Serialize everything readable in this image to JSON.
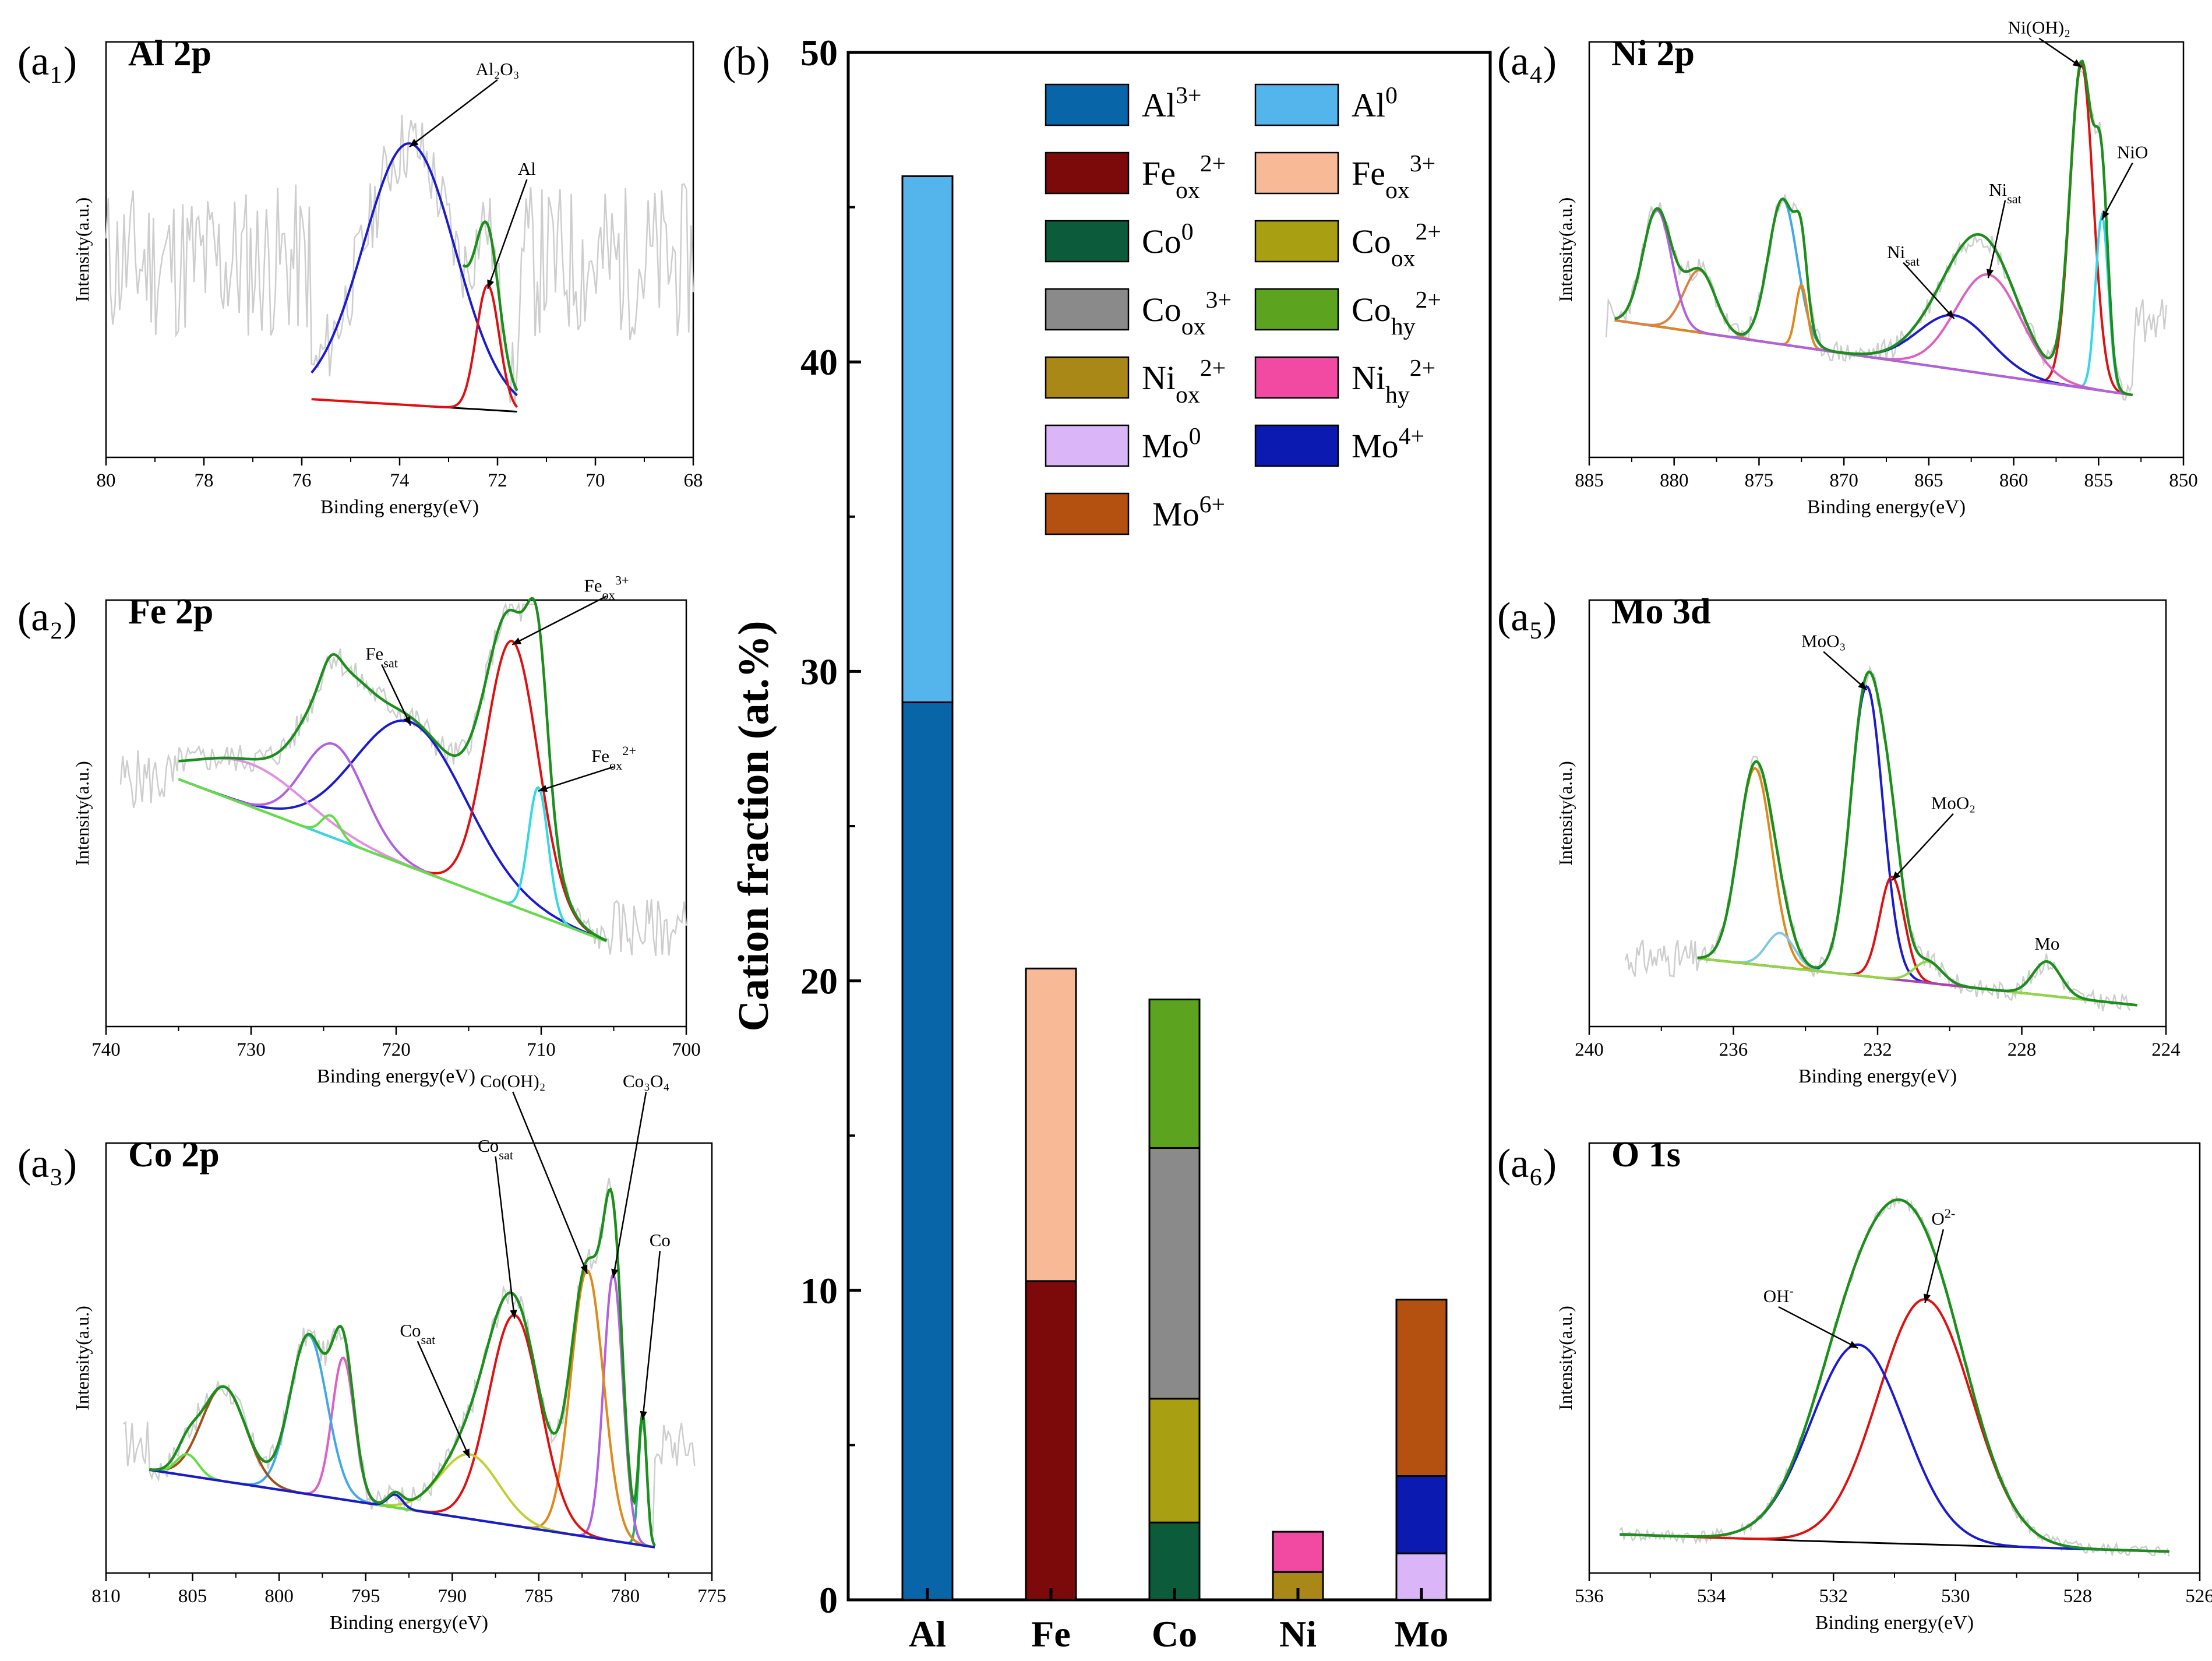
{
  "figure_labels": {
    "a1": "(a₁)",
    "a2": "(a₂)",
    "a3": "(a₃)",
    "a4": "(a₄)",
    "a5": "(a₅)",
    "a6": "(a₆)",
    "b": "(b)"
  },
  "colors": {
    "raw": "#cdcdcd",
    "envelope": "#1a8f1a",
    "background": "#000000",
    "red": "#e01010",
    "blue": "#1a1ad0",
    "cyan": "#30d8e8",
    "orange": "#e08818",
    "violet": "#b060e0",
    "lightgreen": "#60e040",
    "brown": "#a05018",
    "pink": "#e060c0",
    "olive": "#b0b040",
    "lightblue": "#60b8e8"
  },
  "chart_data": [
    {
      "id": "b",
      "type": "bar",
      "stacked": true,
      "title": "",
      "xlabel": "",
      "ylabel": "Cation fraction (at.%)",
      "ylim": [
        0,
        50
      ],
      "yticks": [
        "0",
        "10",
        "20",
        "30",
        "40",
        "50"
      ],
      "categories": [
        "Al",
        "Fe",
        "Co",
        "Ni",
        "Mo"
      ],
      "series": [
        {
          "name": "Al3+",
          "base": "Al",
          "sup": "3+",
          "sub": "",
          "color": "#0865a8",
          "values": [
            29.0,
            0,
            0,
            0,
            0
          ]
        },
        {
          "name": "Al0",
          "base": "Al",
          "sup": "0",
          "sub": "",
          "color": "#53b5ec",
          "values": [
            17.0,
            0,
            0,
            0,
            0
          ]
        },
        {
          "name": "Feox2+",
          "base": "Fe",
          "sup": "2+",
          "sub": "ox",
          "color": "#7d0a0a",
          "values": [
            0,
            10.3,
            0,
            0,
            0
          ]
        },
        {
          "name": "Feox3+",
          "base": "Fe",
          "sup": "3+",
          "sub": "ox",
          "color": "#f7b996",
          "values": [
            0,
            10.1,
            0,
            0,
            0
          ]
        },
        {
          "name": "Co0",
          "base": "Co",
          "sup": "0",
          "sub": "",
          "color": "#0c5c3c",
          "values": [
            0,
            0,
            2.5,
            0,
            0
          ]
        },
        {
          "name": "Coox2+",
          "base": "Co",
          "sup": "2+",
          "sub": "ox",
          "color": "#a8a012",
          "values": [
            0,
            0,
            4.0,
            0,
            0
          ]
        },
        {
          "name": "Coox3+",
          "base": "Co",
          "sup": "3+",
          "sub": "ox",
          "color": "#8a8a8a",
          "values": [
            0,
            0,
            8.1,
            0,
            0
          ]
        },
        {
          "name": "Cohy2+",
          "base": "Co",
          "sup": "2+",
          "sub": "hy",
          "color": "#5ca41f",
          "values": [
            0,
            0,
            4.8,
            0,
            0
          ]
        },
        {
          "name": "Niox2+",
          "base": "Ni",
          "sup": "2+",
          "sub": "ox",
          "color": "#aa8818",
          "values": [
            0,
            0,
            0,
            0.9,
            0
          ]
        },
        {
          "name": "Nihy2+",
          "base": "Ni",
          "sup": "2+",
          "sub": "hy",
          "color": "#f24aa2",
          "values": [
            0,
            0,
            0,
            1.3,
            0
          ]
        },
        {
          "name": "Mo0",
          "base": "Mo",
          "sup": "0",
          "sub": "",
          "color": "#dab6f8",
          "values": [
            0,
            0,
            0,
            0,
            1.5
          ]
        },
        {
          "name": "Mo4+",
          "base": "Mo",
          "sup": "4+",
          "sub": "",
          "color": "#0b1ab0",
          "values": [
            0,
            0,
            0,
            0,
            2.5
          ]
        },
        {
          "name": "Mo6+",
          "base": "Mo",
          "sup": "6+",
          "sub": "",
          "color": "#b45010",
          "values": [
            0,
            0,
            0,
            0,
            5.7
          ]
        }
      ]
    },
    {
      "id": "a1",
      "type": "line",
      "title": "Al 2p",
      "xlabel": "Binding energy(eV)",
      "ylabel": "Intensity(a.u.)",
      "xlim": [
        80,
        68
      ],
      "ylim": [
        0,
        1
      ],
      "xticks": [
        80,
        78,
        76,
        74,
        72,
        70,
        68
      ],
      "raw": {
        "x_range": [
          80,
          68
        ],
        "base": 0.47,
        "noise": 0.19,
        "seed": 11
      },
      "background": {
        "points": [
          [
            75.8,
            0.14
          ],
          [
            71.6,
            0.11
          ]
        ]
      },
      "peaks": [
        {
          "label": "Al2O3",
          "center": 73.8,
          "fwhm": 2.2,
          "height": 0.63,
          "color": "red-unused-blue"
        },
        {
          "label": "Al",
          "center": 72.2,
          "fwhm": 0.55,
          "height": 0.3
        }
      ],
      "peak_colors": [
        "#1a1ad0",
        "#e01010"
      ],
      "envelope_range": [
        72.7,
        71.6
      ],
      "annotations": [
        {
          "text": "Al₂O₃",
          "tx": 72.0,
          "ty": 0.92,
          "peak": 0
        },
        {
          "text": "Al",
          "tx": 71.4,
          "ty": 0.68,
          "peak": 1
        }
      ]
    },
    {
      "id": "a2",
      "type": "line",
      "title": "Fe 2p",
      "xlabel": "Binding energy(eV)",
      "ylabel": "Intensity(a.u.)",
      "xlim": [
        740,
        700
      ],
      "ylim": [
        0,
        1
      ],
      "xticks": [
        740,
        730,
        720,
        710,
        700
      ],
      "raw": {
        "x_range": [
          739,
          700
        ],
        "base": 0.58,
        "noise": 0.07,
        "seed": 5,
        "tail": 0.2
      },
      "background": {
        "points": [
          [
            735,
            0.58
          ],
          [
            705.5,
            0.2
          ]
        ]
      },
      "peaks": [
        {
          "label": "Fe_sat",
          "center": 719.0,
          "fwhm": 9.0,
          "height": 0.34
        },
        {
          "label": "Feox3+",
          "center": 712.0,
          "fwhm": 4.2,
          "height": 0.62
        },
        {
          "label": "Feox2+",
          "center": 710.2,
          "fwhm": 1.6,
          "height": 0.3
        },
        {
          "label": "sat2",
          "center": 724.3,
          "fwhm": 5.0,
          "height": 0.22
        },
        {
          "label": "sat3",
          "center": 730.0,
          "fwhm": 9.0,
          "height": 0.1
        },
        {
          "label": "small",
          "center": 724.5,
          "fwhm": 1.5,
          "height": 0.05
        }
      ],
      "peak_colors": [
        "#1a1ad0",
        "#e01010",
        "#30d8e8",
        "#b060e0",
        "#e090e0",
        "#60e040"
      ],
      "annotations": [
        {
          "text": "Fe_sat",
          "tx": 721.0,
          "ty": 0.86,
          "peak": 0
        },
        {
          "text": "Fe_ox^3+",
          "tx": 705.5,
          "ty": 1.02,
          "peak": 1
        },
        {
          "text": "Fe_ox^2+",
          "tx": 705.0,
          "ty": 0.62,
          "peak": 2
        }
      ]
    },
    {
      "id": "a3",
      "type": "line",
      "title": "Co 2p",
      "xlabel": "Binding energy(eV)",
      "ylabel": "Intensity(a.u.)",
      "xlim": [
        810,
        775
      ],
      "ylim": [
        0,
        1
      ],
      "xticks": [
        810,
        805,
        800,
        795,
        790,
        785,
        780,
        775
      ],
      "raw": {
        "x_range": [
          809,
          776
        ],
        "base": 0.3,
        "noise": 0.06,
        "seed": 17
      },
      "background": {
        "points": [
          [
            807.5,
            0.24
          ],
          [
            778.3,
            0.06
          ]
        ]
      },
      "peaks": [
        {
          "label": "Co",
          "center": 779.0,
          "fwhm": 0.55,
          "height": 0.3
        },
        {
          "label": "Co3O4",
          "center": 780.7,
          "fwhm": 1.3,
          "height": 0.62
        },
        {
          "label": "Co(OH)2",
          "center": 782.2,
          "fwhm": 2.2,
          "height": 0.62
        },
        {
          "label": "Co_sat",
          "center": 786.4,
          "fwhm": 3.5,
          "height": 0.49
        },
        {
          "label": "Co_sat2",
          "center": 789.0,
          "fwhm": 4.0,
          "height": 0.15
        },
        {
          "label": "p796",
          "center": 796.3,
          "fwhm": 1.5,
          "height": 0.33
        },
        {
          "label": "p798",
          "center": 798.3,
          "fwhm": 2.5,
          "height": 0.37
        },
        {
          "label": "p803",
          "center": 803.2,
          "fwhm": 3.0,
          "height": 0.22
        },
        {
          "label": "p805",
          "center": 805.3,
          "fwhm": 1.5,
          "height": 0.05
        },
        {
          "label": "p793",
          "center": 793.3,
          "fwhm": 1.0,
          "height": 0.03
        }
      ],
      "peak_colors": [
        "#20b070",
        "#b060e0",
        "#e08818",
        "#e01010",
        "#c0d030",
        "#e060c0",
        "#40a8e8",
        "#a05018",
        "#60e040",
        "#1a1ad0"
      ],
      "annotations": [
        {
          "text": "Co",
          "tx": 778.0,
          "ty": 0.76,
          "peak": 0
        },
        {
          "text": "Co₃O₄",
          "tx": 778.8,
          "ty": 1.13,
          "peak": 1
        },
        {
          "text": "Co(OH)₂",
          "tx": 786.5,
          "ty": 1.13,
          "peak": 2
        },
        {
          "text": "Co_sat",
          "tx": 787.5,
          "ty": 0.98,
          "peak": 3
        },
        {
          "text": "Co_sat",
          "tx": 792.0,
          "ty": 0.55,
          "peak": 4
        }
      ]
    },
    {
      "id": "a4",
      "type": "line",
      "title": "Ni 2p",
      "xlabel": "Binding energy(eV)",
      "ylabel": "Intensity(a.u.)",
      "xlim": [
        885,
        850
      ],
      "ylim": [
        0,
        1
      ],
      "xticks": [
        885,
        880,
        875,
        870,
        865,
        860,
        855,
        850
      ],
      "raw": {
        "x_range": [
          884,
          851
        ],
        "base": 0.33,
        "noise": 0.055,
        "seed": 23
      },
      "background": {
        "points": [
          [
            883.5,
            0.33
          ],
          [
            853.0,
            0.15
          ]
        ]
      },
      "peaks": [
        {
          "label": "Ni(OH)2",
          "center": 856.0,
          "fwhm": 1.6,
          "height": 0.78
        },
        {
          "label": "NiO",
          "center": 854.8,
          "fwhm": 0.9,
          "height": 0.42
        },
        {
          "label": "Ni_sat1",
          "center": 861.5,
          "fwhm": 4.5,
          "height": 0.24
        },
        {
          "label": "Ni_sat2",
          "center": 863.5,
          "fwhm": 5.0,
          "height": 0.13
        },
        {
          "label": "p873",
          "center": 873.6,
          "fwhm": 2.0,
          "height": 0.35
        },
        {
          "label": "p872",
          "center": 872.5,
          "fwhm": 0.8,
          "height": 0.15
        },
        {
          "label": "p878",
          "center": 878.5,
          "fwhm": 2.2,
          "height": 0.15
        },
        {
          "label": "p881",
          "center": 881.0,
          "fwhm": 2.0,
          "height": 0.28
        }
      ],
      "peak_colors": [
        "#e01010",
        "#30d8e8",
        "#e060c0",
        "#1a1ad0",
        "#40a8e8",
        "#e08818",
        "#e08040",
        "#b060e0"
      ],
      "annotations": [
        {
          "text": "Ni(OH)₂",
          "tx": 858.5,
          "ty": 1.02,
          "peak": 0
        },
        {
          "text": "NiO",
          "tx": 853.0,
          "ty": 0.72,
          "peak": 1
        },
        {
          "text": "Ni_sat",
          "tx": 860.5,
          "ty": 0.63,
          "peak": 2
        },
        {
          "text": "Ni_sat",
          "tx": 866.5,
          "ty": 0.48,
          "peak": 3
        }
      ]
    },
    {
      "id": "a5",
      "type": "line",
      "title": "Mo 3d",
      "xlabel": "Binding energy(eV)",
      "ylabel": "Intensity(a.u.)",
      "xlim": [
        240,
        224
      ],
      "ylim": [
        0,
        1
      ],
      "xticks": [
        240,
        236,
        232,
        228,
        224
      ],
      "raw": {
        "x_range": [
          239,
          225
        ],
        "base": 0.16,
        "noise": 0.045,
        "seed": 31
      },
      "background": {
        "points": [
          [
            237.0,
            0.16
          ],
          [
            224.8,
            0.05
          ]
        ]
      },
      "peaks": [
        {
          "label": "MoO3",
          "center": 232.3,
          "fwhm": 1.05,
          "height": 0.68
        },
        {
          "label": "p235",
          "center": 235.4,
          "fwhm": 1.1,
          "height": 0.46
        },
        {
          "label": "MoO2",
          "center": 231.6,
          "fwhm": 0.8,
          "height": 0.24
        },
        {
          "label": "p234",
          "center": 234.7,
          "fwhm": 0.9,
          "height": 0.08
        },
        {
          "label": "Mo",
          "center": 227.3,
          "fwhm": 0.9,
          "height": 0.08
        },
        {
          "label": "p230",
          "center": 230.6,
          "fwhm": 0.9,
          "height": 0.05
        }
      ],
      "peak_colors": [
        "#1a1ad0",
        "#e08818",
        "#e01010",
        "#80c8e8",
        "#b040b0",
        "#90d840"
      ],
      "annotations": [
        {
          "text": "MoO₃",
          "tx": 233.5,
          "ty": 0.89,
          "peak": 0
        },
        {
          "text": "MoO₂",
          "tx": 229.9,
          "ty": 0.51,
          "peak": 2
        },
        {
          "text": "Mo",
          "tx": 227.3,
          "ty": 0.18,
          "peak": -1
        }
      ]
    },
    {
      "id": "a6",
      "type": "line",
      "title": "O 1s",
      "xlabel": "Binding energy(eV)",
      "ylabel": "Intensity(a.u.)",
      "xlim": [
        536,
        526
      ],
      "ylim": [
        0,
        1
      ],
      "xticks": [
        536,
        534,
        532,
        530,
        528,
        526
      ],
      "raw": {
        "x_range": [
          535.5,
          526.5
        ],
        "base": 0.0,
        "noise": 0.015,
        "seed": 41,
        "follow": true
      },
      "background": {
        "points": [
          [
            535.5,
            0.09
          ],
          [
            532.5,
            0.075
          ],
          [
            526.5,
            0.05
          ]
        ]
      },
      "peaks": [
        {
          "label": "O2-",
          "center": 530.5,
          "fwhm": 1.8,
          "height": 0.57
        },
        {
          "label": "OH-",
          "center": 531.6,
          "fwhm": 1.8,
          "height": 0.46
        }
      ],
      "peak_colors": [
        "#e01010",
        "#1a1ad0"
      ],
      "annotations": [
        {
          "text": "O^2-",
          "tx": 530.2,
          "ty": 0.81,
          "peak": 0
        },
        {
          "text": "OH^-",
          "tx": 532.9,
          "ty": 0.63,
          "peak": 1
        }
      ]
    }
  ]
}
